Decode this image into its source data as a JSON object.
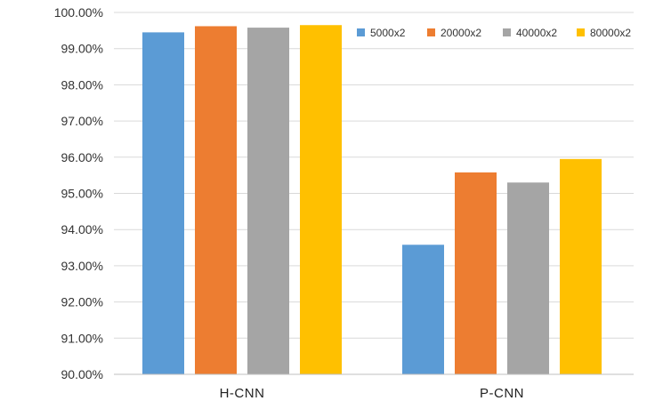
{
  "chart_data": {
    "type": "bar",
    "title": "",
    "xlabel": "",
    "ylabel": "",
    "categories": [
      "H-CNN",
      "P-CNN"
    ],
    "series": [
      {
        "name": "5000x2",
        "values": [
          99.45,
          93.58
        ]
      },
      {
        "name": "20000x2",
        "values": [
          99.62,
          95.58
        ]
      },
      {
        "name": "40000x2",
        "values": [
          99.58,
          95.3
        ]
      },
      {
        "name": "80000x2",
        "values": [
          99.65,
          95.95
        ]
      }
    ],
    "ylim": [
      90,
      100
    ],
    "y_ticks": [
      {
        "value": 90,
        "label": "90.00%"
      },
      {
        "value": 91,
        "label": "91.00%"
      },
      {
        "value": 92,
        "label": "92.00%"
      },
      {
        "value": 93,
        "label": "93.00%"
      },
      {
        "value": 94,
        "label": "94.00%"
      },
      {
        "value": 95,
        "label": "95.00%"
      },
      {
        "value": 96,
        "label": "96.00%"
      },
      {
        "value": 97,
        "label": "97.00%"
      },
      {
        "value": 98,
        "label": "98.00%"
      },
      {
        "value": 99,
        "label": "99.00%"
      },
      {
        "value": 100,
        "label": "100.00%"
      }
    ],
    "grid": true,
    "legend_position": "top-right",
    "colors": [
      "#5b9bd5",
      "#ed7d31",
      "#a5a5a5",
      "#ffc000"
    ]
  }
}
